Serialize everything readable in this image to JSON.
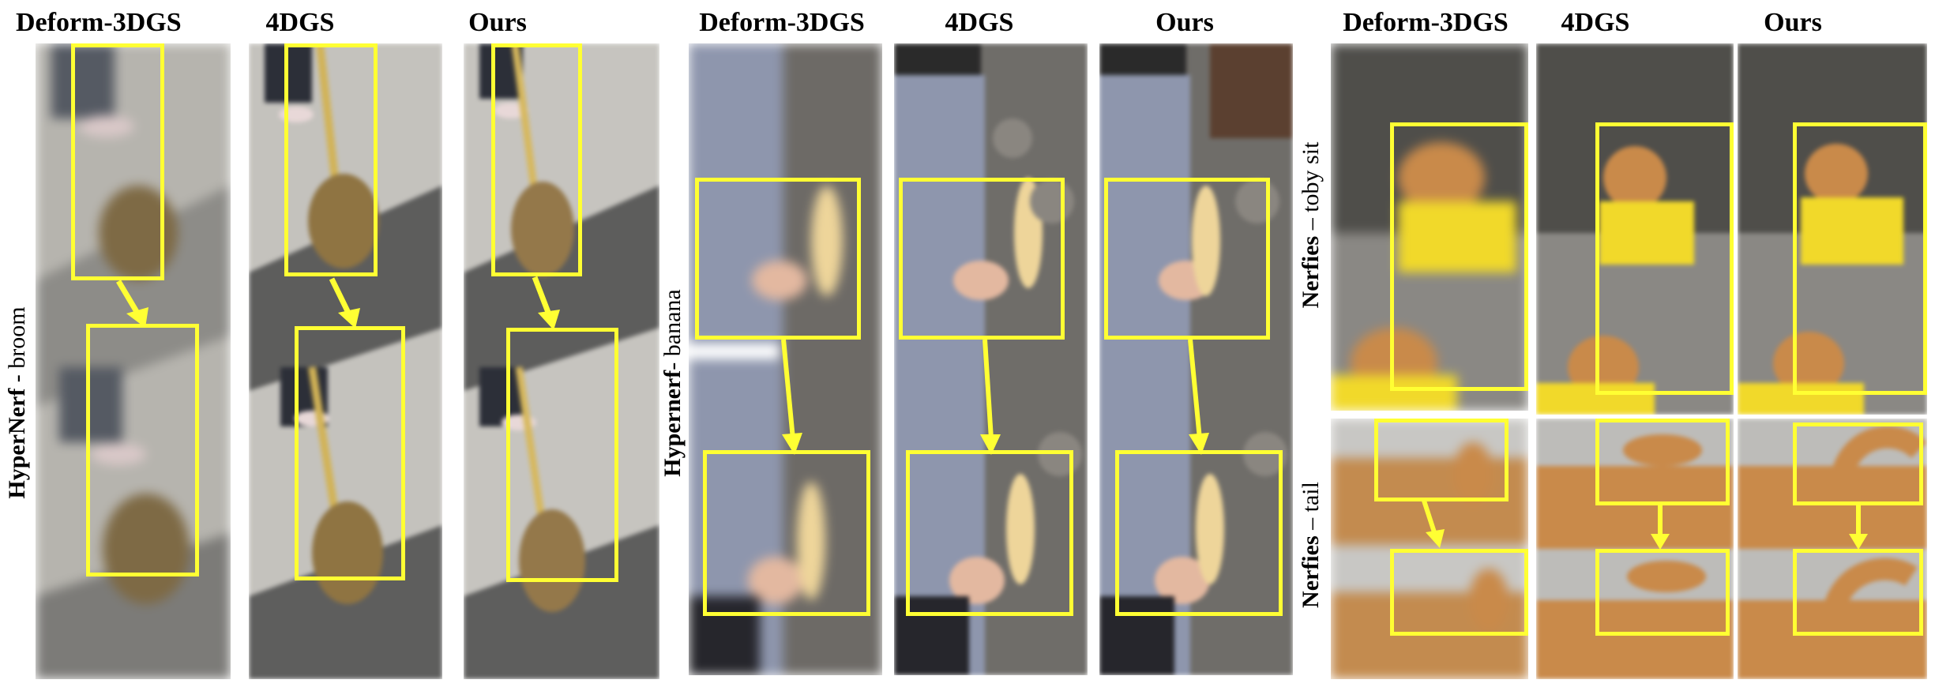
{
  "columns": {
    "deform": "Deform-3DGS",
    "fourdgs": "4DGS",
    "ours": "Ours"
  },
  "rows": {
    "broom": {
      "method": "HyperNerf",
      "sep": " - ",
      "scene": "broom"
    },
    "banana": {
      "method": "Hypernerf",
      "sep": "- ",
      "scene": "banana"
    },
    "toby": {
      "method": "Nerfies",
      "sep": " – ",
      "scene": "toby sit"
    },
    "tail": {
      "method": "Nerfies",
      "sep": " – ",
      "scene": "tail"
    }
  },
  "colors": {
    "highlight": "#ffff33",
    "pavement": "#9a9a96",
    "sweater": "#8e96ad",
    "rocks": "#6d6a66",
    "dog_fur": "#c98a4a",
    "dog_shirt": "#f1d92a"
  }
}
